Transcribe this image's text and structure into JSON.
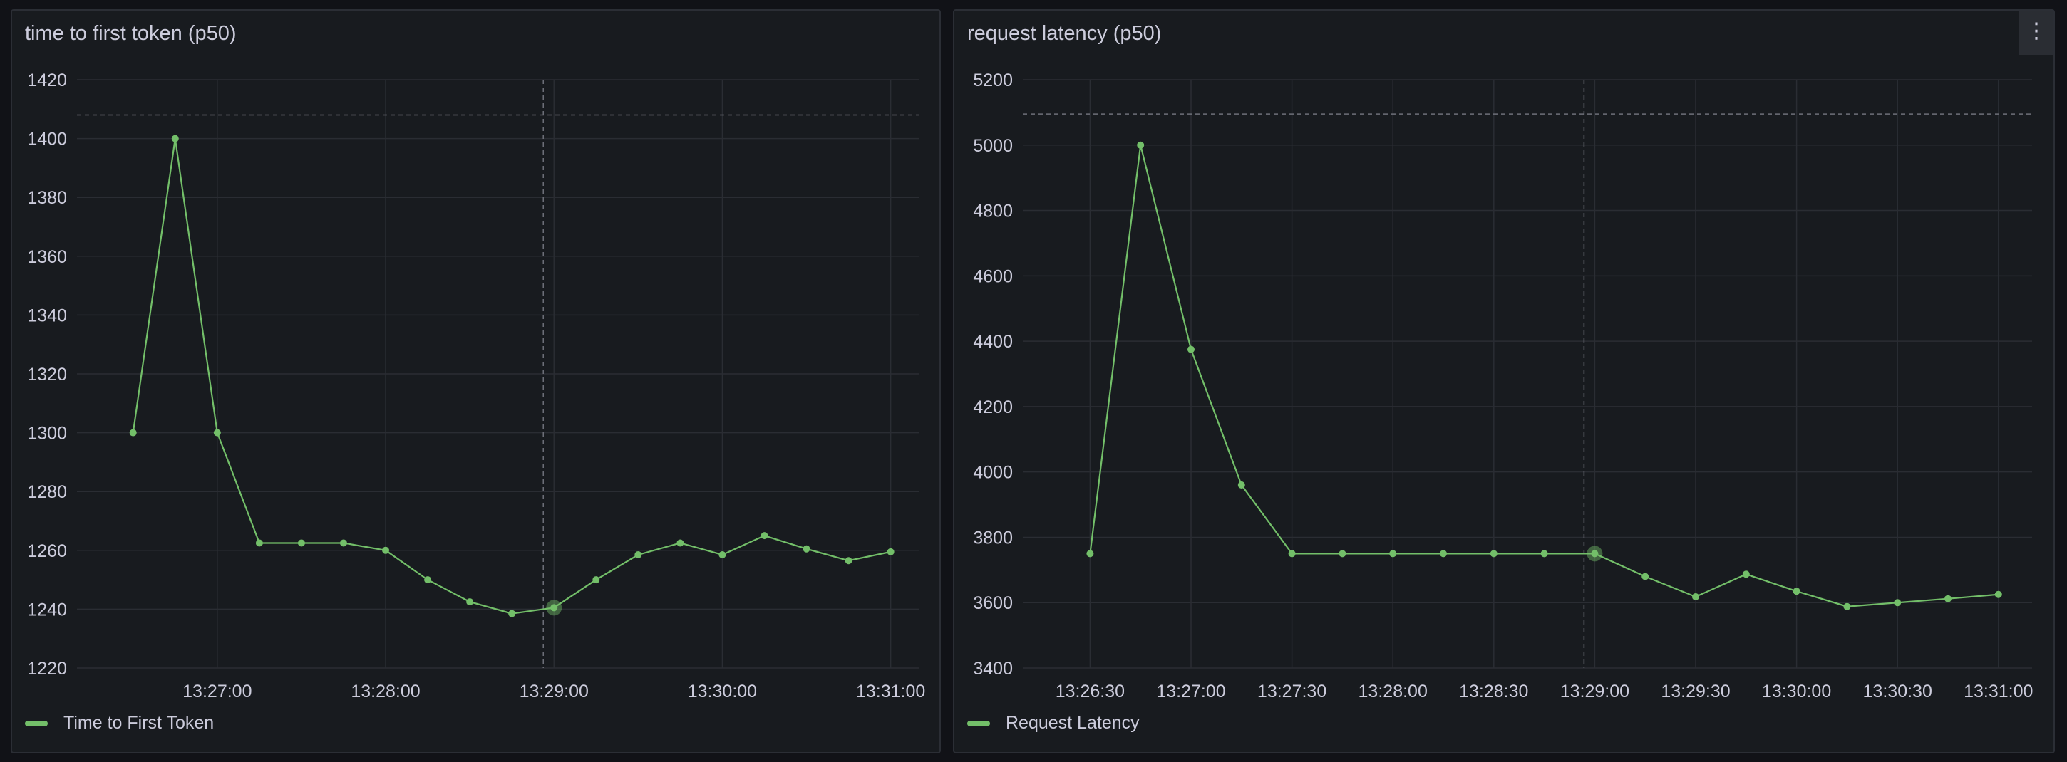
{
  "colors": {
    "series": "#73bf69",
    "grid": "#2a2d33",
    "text": "#ccccdc",
    "crosshair": "#6e7079"
  },
  "panels": [
    {
      "title": "time to first token (p50)",
      "menu_icon": "kebab-menu-icon",
      "show_menu": false
    },
    {
      "title": "request latency (p50)",
      "menu_icon": "kebab-menu-icon",
      "show_menu": true,
      "menu_glyph": "⋮"
    }
  ],
  "chart_data": [
    {
      "type": "line",
      "title": "time to first token (p50)",
      "x": [
        "13:26:30",
        "13:26:45",
        "13:27:00",
        "13:27:15",
        "13:27:30",
        "13:27:45",
        "13:28:00",
        "13:28:15",
        "13:28:30",
        "13:28:45",
        "13:29:00",
        "13:29:15",
        "13:29:30",
        "13:29:45",
        "13:30:00",
        "13:30:15",
        "13:30:30",
        "13:30:45",
        "13:31:00"
      ],
      "series": [
        {
          "name": "Time to First Token",
          "values": [
            1300,
            1400,
            1300,
            1262.5,
            1262.5,
            1262.5,
            1260,
            1250,
            1242.5,
            1238.5,
            1240.5,
            1250,
            1258.5,
            1262.5,
            1258.5,
            1265,
            1260.5,
            1256.5,
            1259.5
          ]
        }
      ],
      "xlim": [
        "13:26:10",
        "13:31:10"
      ],
      "x_ticks": [
        "13:27:00",
        "13:28:00",
        "13:29:00",
        "13:30:00",
        "13:31:00"
      ],
      "ylim": [
        1220,
        1420
      ],
      "y_ticks": [
        1220,
        1240,
        1260,
        1280,
        1300,
        1320,
        1340,
        1360,
        1380,
        1400,
        1420
      ],
      "grid": true,
      "legend": "bottom-left",
      "hover": {
        "x": "13:29:00",
        "crosshair_y": 1408
      }
    },
    {
      "type": "line",
      "title": "request latency (p50)",
      "x": [
        "13:26:30",
        "13:26:45",
        "13:27:00",
        "13:27:15",
        "13:27:30",
        "13:27:45",
        "13:28:00",
        "13:28:15",
        "13:28:30",
        "13:28:45",
        "13:29:00",
        "13:29:15",
        "13:29:30",
        "13:29:45",
        "13:30:00",
        "13:30:15",
        "13:30:30",
        "13:30:45",
        "13:31:00"
      ],
      "series": [
        {
          "name": "Request Latency",
          "values": [
            3750,
            5000,
            4375,
            3960,
            3750,
            3750,
            3750,
            3750,
            3750,
            3750,
            3750,
            3680,
            3618,
            3687,
            3635,
            3588,
            3600,
            3612,
            3625
          ]
        }
      ],
      "xlim": [
        "13:26:10",
        "13:31:10"
      ],
      "x_ticks": [
        "13:26:30",
        "13:27:00",
        "13:27:30",
        "13:28:00",
        "13:28:30",
        "13:29:00",
        "13:29:30",
        "13:30:00",
        "13:30:30",
        "13:31:00"
      ],
      "ylim": [
        3400,
        5200
      ],
      "y_ticks": [
        3400,
        3600,
        3800,
        4000,
        4200,
        4400,
        4600,
        4800,
        5000,
        5200
      ],
      "grid": true,
      "legend": "bottom-left",
      "hover": {
        "x": "13:29:00",
        "crosshair_y": 5095
      }
    }
  ]
}
